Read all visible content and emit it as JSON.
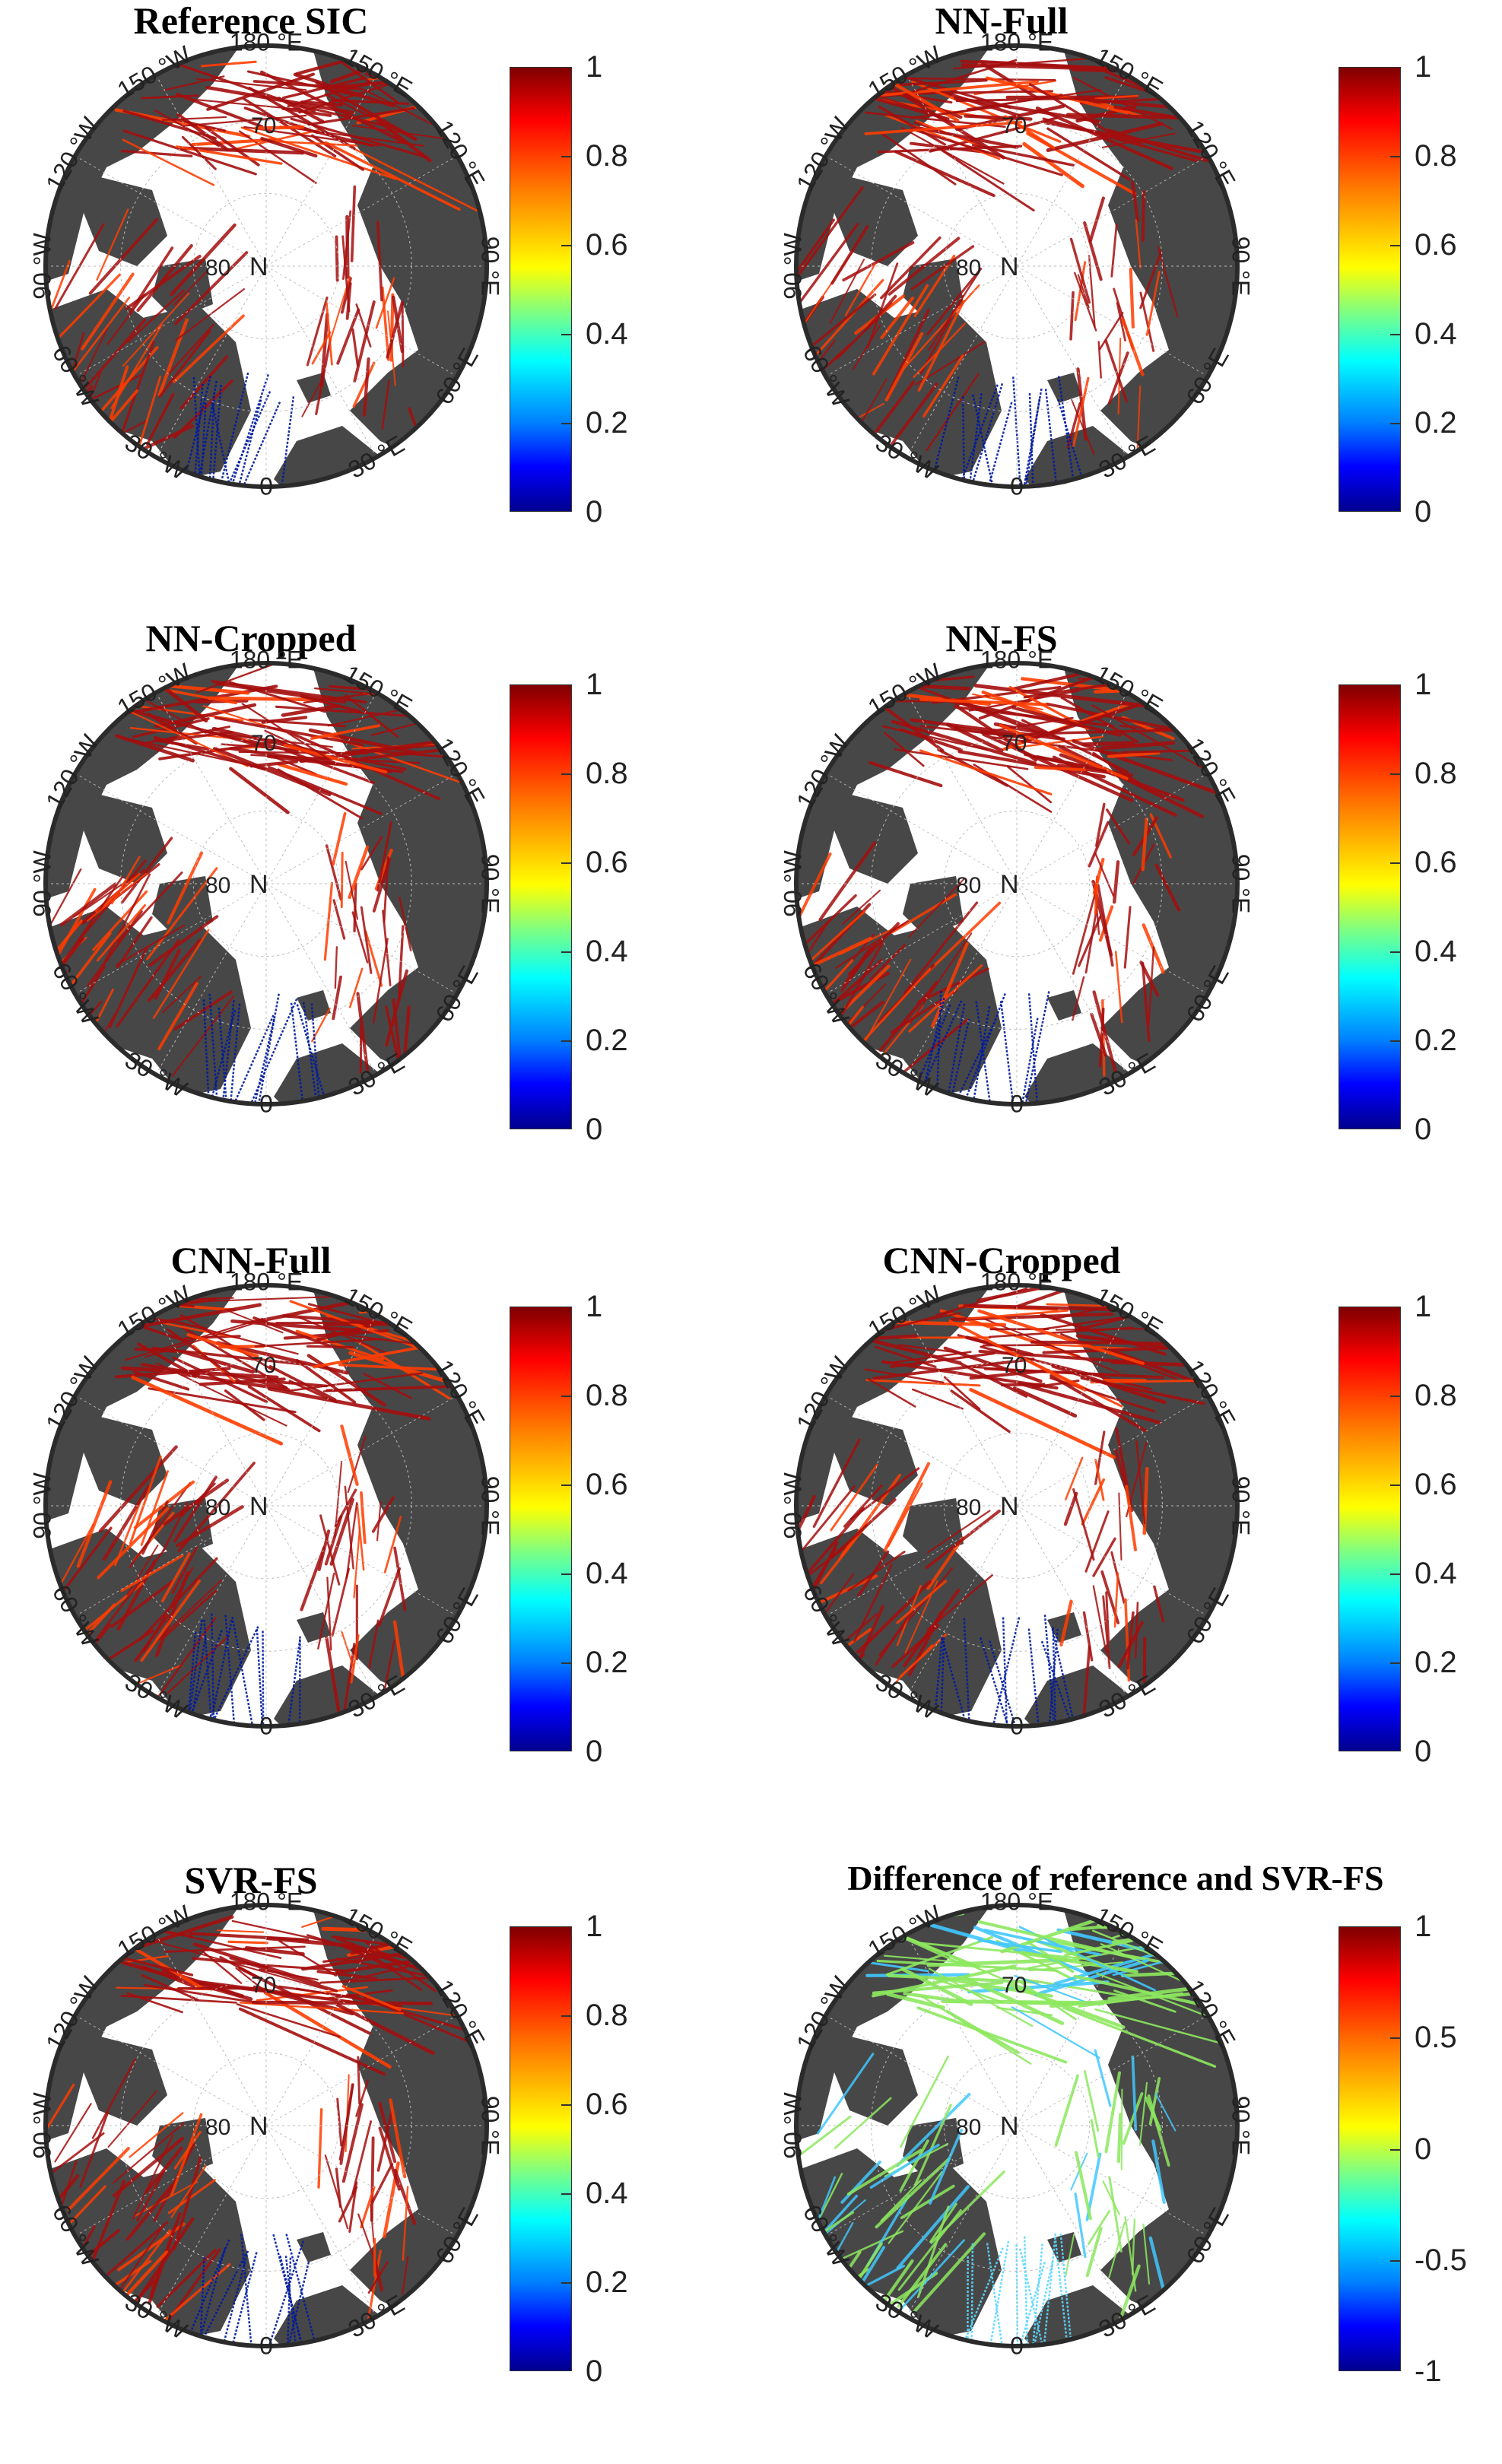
{
  "panels": [
    {
      "title": "Reference SIC",
      "colorbar": "jet",
      "ticks": [
        "1",
        "0.8",
        "0.6",
        "0.4",
        "0.2",
        "0"
      ],
      "center_lat_label": "80"
    },
    {
      "title": "NN-Full",
      "colorbar": "jet",
      "ticks": [
        "1",
        "0.8",
        "0.6",
        "0.4",
        "0.2",
        "0"
      ],
      "center_lat_label": "80"
    },
    {
      "title": "NN-Cropped",
      "colorbar": "jet",
      "ticks": [
        "1",
        "0.8",
        "0.6",
        "0.4",
        "0.2",
        "0"
      ],
      "center_lat_label": "80"
    },
    {
      "title": "NN-FS",
      "colorbar": "jet",
      "ticks": [
        "1",
        "0.8",
        "0.6",
        "0.4",
        "0.2",
        "0"
      ],
      "center_lat_label": "80"
    },
    {
      "title": "CNN-Full",
      "colorbar": "jet",
      "ticks": [
        "1",
        "0.8",
        "0.6",
        "0.4",
        "0.2",
        "0"
      ],
      "center_lat_label": "80"
    },
    {
      "title": "CNN-Cropped",
      "colorbar": "jet",
      "ticks": [
        "1",
        "0.8",
        "0.6",
        "0.4",
        "0.2",
        "0"
      ],
      "center_lat_label": "80"
    },
    {
      "title": "SVR-FS",
      "colorbar": "jet",
      "ticks": [
        "1",
        "0.8",
        "0.6",
        "0.4",
        "0.2",
        "0"
      ],
      "center_lat_label": "80"
    },
    {
      "title": "Difference of reference and SVR-FS",
      "colorbar": "jet",
      "ticks": [
        "1",
        "0.5",
        "0",
        "-0.5",
        "-1"
      ],
      "center_lat_label": "80"
    }
  ],
  "map_labels": {
    "north": "N",
    "lat70": "70",
    "lon_labels": [
      "180 °E",
      "150 °E",
      "120 °E",
      "90 °E",
      "60 °E",
      "30 °E",
      "0",
      "30 °W",
      "60 °W",
      "90 °W",
      "120 °W",
      "150 °W"
    ]
  },
  "colors": {
    "land": "#474747",
    "ocean": "#ffffff",
    "ice_high": "#a50e0e",
    "ice_mid": "#ff3d00",
    "water": "#001b9e",
    "diff": "#8de85f"
  }
}
